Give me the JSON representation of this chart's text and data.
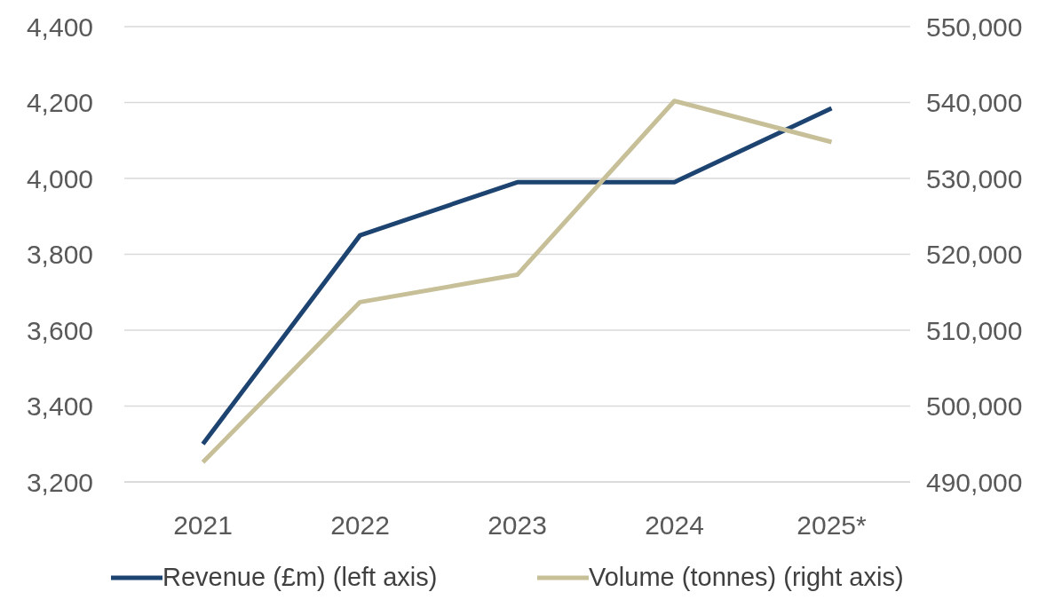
{
  "chart_data": {
    "type": "line",
    "categories": [
      "2021",
      "2022",
      "2023",
      "2024",
      "2025*"
    ],
    "series": [
      {
        "name": "Revenue (£m) (left axis)",
        "color": "#1d4370",
        "values": [
          3300,
          3850,
          3990,
          3990,
          4185
        ]
      },
      {
        "name": "Volume (tonnes) (right axis)",
        "color": "#c6bf98",
        "values": [
          492600,
          513700,
          517300,
          540200,
          534800
        ],
        "axis": "y2"
      }
    ],
    "ylim": [
      3200,
      4400
    ],
    "yticks": [
      {
        "value": 3200,
        "label": "3,200"
      },
      {
        "value": 3400,
        "label": "3,400"
      },
      {
        "value": 3600,
        "label": "3,600"
      },
      {
        "value": 3800,
        "label": "3,800"
      },
      {
        "value": 4000,
        "label": "4,000"
      },
      {
        "value": 4200,
        "label": "4,200"
      },
      {
        "value": 4400,
        "label": "4,400"
      }
    ],
    "y2lim": [
      490000,
      550000
    ],
    "y2ticks": [
      {
        "value": 490000,
        "label": "490,000"
      },
      {
        "value": 500000,
        "label": "500,000"
      },
      {
        "value": 510000,
        "label": "510,000"
      },
      {
        "value": 520000,
        "label": "520,000"
      },
      {
        "value": 530000,
        "label": "530,000"
      },
      {
        "value": 540000,
        "label": "540,000"
      },
      {
        "value": 550000,
        "label": "550,000"
      }
    ],
    "grid": "y",
    "legend": "bottom",
    "marker": "none",
    "line_style": "solid"
  }
}
